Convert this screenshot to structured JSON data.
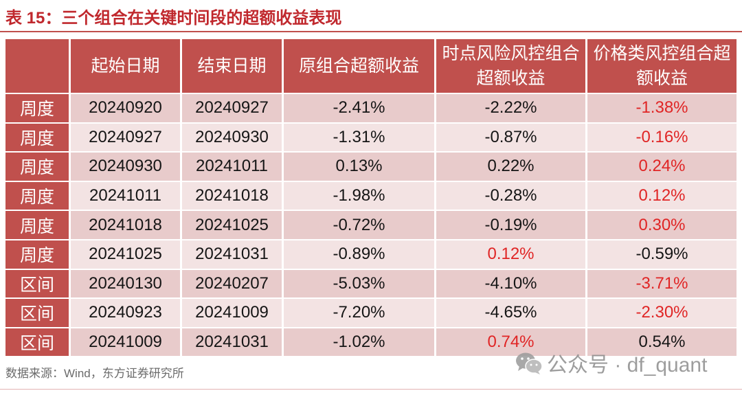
{
  "colors": {
    "header_fill": "#c0504d",
    "row_fill_dark": "#e8cbcb",
    "row_fill_light": "#f3e3e3",
    "title_text": "#c0282d",
    "highlight_text": "#e02525",
    "rule": "#c0504d"
  },
  "chart_data": {
    "type": "table",
    "title": "表 15：三个组合在关键时间段的超额收益表现",
    "columns": [
      [],
      [
        "起始日期"
      ],
      [
        "结束日期"
      ],
      [
        "原组合超额收益"
      ],
      [
        "时点风险风控组合",
        "超额收益"
      ],
      [
        "价格类风控组合超",
        "额收益"
      ]
    ],
    "rows": [
      {
        "cells": [
          "周度",
          "20240920",
          "20240927",
          "-2.41%",
          "-2.22%",
          "-1.38%"
        ],
        "highlight": 5
      },
      {
        "cells": [
          "周度",
          "20240927",
          "20240930",
          "-1.31%",
          "-0.87%",
          "-0.16%"
        ],
        "highlight": 5
      },
      {
        "cells": [
          "周度",
          "20240930",
          "20241011",
          "0.13%",
          "0.22%",
          "0.24%"
        ],
        "highlight": 5
      },
      {
        "cells": [
          "周度",
          "20241011",
          "20241018",
          "-1.98%",
          "-0.28%",
          "0.12%"
        ],
        "highlight": 5
      },
      {
        "cells": [
          "周度",
          "20241018",
          "20241025",
          "-0.72%",
          "-0.19%",
          "0.30%"
        ],
        "highlight": 5
      },
      {
        "cells": [
          "周度",
          "20241025",
          "20241031",
          "-0.89%",
          "0.12%",
          "-0.59%"
        ],
        "highlight": 4
      },
      {
        "cells": [
          "区间",
          "20240130",
          "20240207",
          "-5.03%",
          "-4.10%",
          "-3.71%"
        ],
        "highlight": 5
      },
      {
        "cells": [
          "区间",
          "20240923",
          "20241009",
          "-7.20%",
          "-4.65%",
          "-2.30%"
        ],
        "highlight": 5
      },
      {
        "cells": [
          "区间",
          "20241009",
          "20241031",
          "-1.02%",
          "0.74%",
          "0.54%"
        ],
        "highlight": 4
      }
    ]
  },
  "source": "数据来源：Wind，东方证券研究所",
  "watermark": {
    "icon": "wechat-icon",
    "text": "公众号 · df_quant"
  }
}
